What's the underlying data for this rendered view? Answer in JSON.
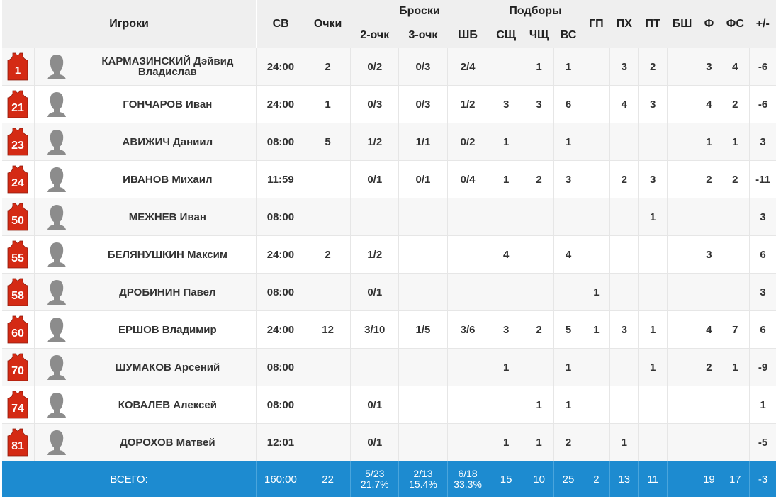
{
  "header": {
    "players": "Игроки",
    "minutes": "СВ",
    "points": "Очки",
    "shots_group": "Броски",
    "two_pt": "2-очк",
    "three_pt": "3-очк",
    "free_throws": "ШБ",
    "rebounds_group": "Подборы",
    "def_reb": "СЩ",
    "off_reb": "ЧЩ",
    "total_reb": "ВС",
    "assists": "ГП",
    "turnovers": "ПХ",
    "steals": "ПТ",
    "blocks": "БШ",
    "fouls": "Ф",
    "fouls_drawn": "ФС",
    "plus_minus": "+/-"
  },
  "jersey_color": "#d42a14",
  "players": [
    {
      "number": "1",
      "name": "КАРМАЗИНСКИЙ Дэйвид Владислав",
      "min": "24:00",
      "pts": "2",
      "two": "0/2",
      "three": "0/3",
      "ft": "2/4",
      "dreb": "",
      "oreb": "1",
      "treb": "1",
      "ast": "",
      "to": "3",
      "stl": "2",
      "blk": "",
      "pf": "3",
      "fd": "4",
      "pm": "-6"
    },
    {
      "number": "21",
      "name": "ГОНЧАРОВ Иван",
      "min": "24:00",
      "pts": "1",
      "two": "0/3",
      "three": "0/3",
      "ft": "1/2",
      "dreb": "3",
      "oreb": "3",
      "treb": "6",
      "ast": "",
      "to": "4",
      "stl": "3",
      "blk": "",
      "pf": "4",
      "fd": "2",
      "pm": "-6"
    },
    {
      "number": "23",
      "name": "АВИЖИЧ Даниил",
      "min": "08:00",
      "pts": "5",
      "two": "1/2",
      "three": "1/1",
      "ft": "0/2",
      "dreb": "1",
      "oreb": "",
      "treb": "1",
      "ast": "",
      "to": "",
      "stl": "",
      "blk": "",
      "pf": "1",
      "fd": "1",
      "pm": "3"
    },
    {
      "number": "24",
      "name": "ИВАНОВ Михаил",
      "min": "11:59",
      "pts": "",
      "two": "0/1",
      "three": "0/1",
      "ft": "0/4",
      "dreb": "1",
      "oreb": "2",
      "treb": "3",
      "ast": "",
      "to": "2",
      "stl": "3",
      "blk": "",
      "pf": "2",
      "fd": "2",
      "pm": "-11"
    },
    {
      "number": "50",
      "name": "МЕЖНЕВ Иван",
      "min": "08:00",
      "pts": "",
      "two": "",
      "three": "",
      "ft": "",
      "dreb": "",
      "oreb": "",
      "treb": "",
      "ast": "",
      "to": "",
      "stl": "1",
      "blk": "",
      "pf": "",
      "fd": "",
      "pm": "3"
    },
    {
      "number": "55",
      "name": "БЕЛЯНУШКИН Максим",
      "min": "24:00",
      "pts": "2",
      "two": "1/2",
      "three": "",
      "ft": "",
      "dreb": "4",
      "oreb": "",
      "treb": "4",
      "ast": "",
      "to": "",
      "stl": "",
      "blk": "",
      "pf": "3",
      "fd": "",
      "pm": "6"
    },
    {
      "number": "58",
      "name": "ДРОБИНИН Павел",
      "min": "08:00",
      "pts": "",
      "two": "0/1",
      "three": "",
      "ft": "",
      "dreb": "",
      "oreb": "",
      "treb": "",
      "ast": "1",
      "to": "",
      "stl": "",
      "blk": "",
      "pf": "",
      "fd": "",
      "pm": "3"
    },
    {
      "number": "60",
      "name": "ЕРШОВ Владимир",
      "min": "24:00",
      "pts": "12",
      "two": "3/10",
      "three": "1/5",
      "ft": "3/6",
      "dreb": "3",
      "oreb": "2",
      "treb": "5",
      "ast": "1",
      "to": "3",
      "stl": "1",
      "blk": "",
      "pf": "4",
      "fd": "7",
      "pm": "6"
    },
    {
      "number": "70",
      "name": "ШУМАКОВ Арсений",
      "min": "08:00",
      "pts": "",
      "two": "",
      "three": "",
      "ft": "",
      "dreb": "1",
      "oreb": "",
      "treb": "1",
      "ast": "",
      "to": "",
      "stl": "1",
      "blk": "",
      "pf": "2",
      "fd": "1",
      "pm": "-9"
    },
    {
      "number": "74",
      "name": "КОВАЛЕВ Алексей",
      "min": "08:00",
      "pts": "",
      "two": "0/1",
      "three": "",
      "ft": "",
      "dreb": "",
      "oreb": "1",
      "treb": "1",
      "ast": "",
      "to": "",
      "stl": "",
      "blk": "",
      "pf": "",
      "fd": "",
      "pm": "1"
    },
    {
      "number": "81",
      "name": "ДОРОХОВ Матвей",
      "min": "12:01",
      "pts": "",
      "two": "0/1",
      "three": "",
      "ft": "",
      "dreb": "1",
      "oreb": "1",
      "treb": "2",
      "ast": "",
      "to": "1",
      "stl": "",
      "blk": "",
      "pf": "",
      "fd": "",
      "pm": "-5"
    }
  ],
  "totals": {
    "label": "ВСЕГО:",
    "min": "160:00",
    "pts": "22",
    "two": "5/23",
    "two_pct": "21.7%",
    "three": "2/13",
    "three_pct": "15.4%",
    "ft": "6/18",
    "ft_pct": "33.3%",
    "dreb": "15",
    "oreb": "10",
    "treb": "25",
    "ast": "2",
    "to": "13",
    "stl": "11",
    "blk": "",
    "pf": "19",
    "fd": "17",
    "pm": "-3"
  }
}
